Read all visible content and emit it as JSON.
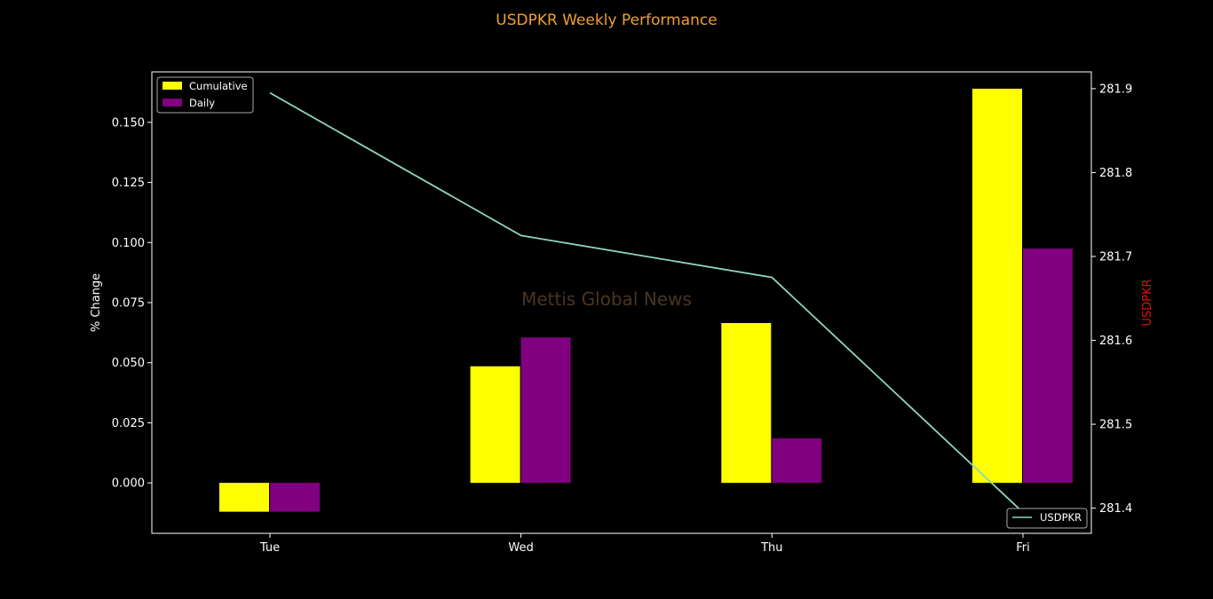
{
  "chart_data": {
    "type": "bar",
    "title": "USDPKR Weekly Performance",
    "watermark": "Mettis Global News",
    "categories": [
      "Tue",
      "Wed",
      "Thu",
      "Fri"
    ],
    "series": [
      {
        "name": "Cumulative",
        "color": "#ffff00",
        "values": [
          -0.012,
          0.0485,
          0.0665,
          0.164
        ]
      },
      {
        "name": "Daily",
        "color": "#800080",
        "values": [
          -0.012,
          0.0605,
          0.0185,
          0.0975
        ]
      }
    ],
    "line_series": {
      "name": "USDPKR",
      "color": "#8fd3c3",
      "values": [
        281.895,
        281.725,
        281.675,
        281.395
      ]
    },
    "ylabel_left": "% Change",
    "ylabel_right": "USDPKR",
    "ylim_left": [
      -0.021,
      0.171
    ],
    "yticks_left": [
      "0.000",
      "0.025",
      "0.050",
      "0.075",
      "0.100",
      "0.125",
      "0.150"
    ],
    "ylim_right": [
      281.37,
      281.92
    ],
    "yticks_right": [
      "281.4",
      "281.5",
      "281.6",
      "281.7",
      "281.8",
      "281.9"
    ],
    "legend_bars_position": "top-left",
    "legend_line_position": "bottom-right",
    "colors": {
      "title": "#f0a030",
      "right_label": "#e01010",
      "watermark": "#4a3520",
      "axes": "#ffffff",
      "background": "#000000"
    }
  }
}
